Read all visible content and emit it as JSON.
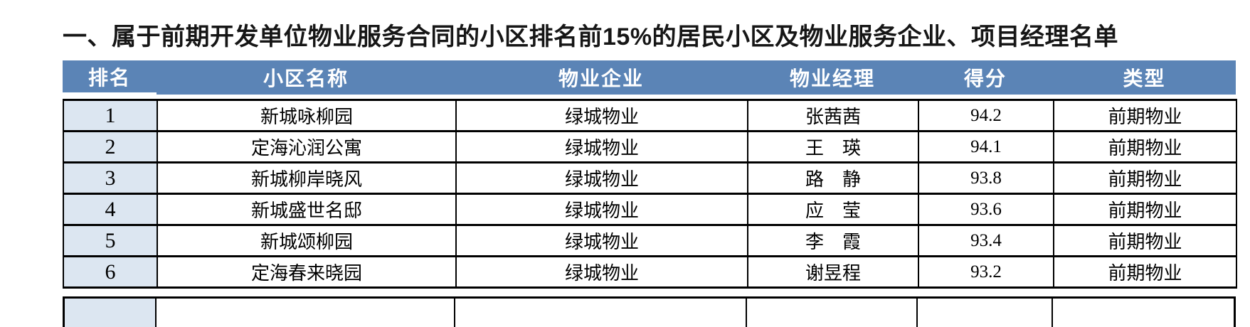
{
  "title": "一、属于前期开发单位物业服务合同的小区排名前15%的居民小区及物业服务企业、项目经理名单",
  "table": {
    "column_keys": [
      "rank",
      "community",
      "company",
      "manager",
      "score",
      "type"
    ],
    "headers": [
      "排名",
      "小区名称",
      "物业企业",
      "物业经理",
      "得分",
      "类型"
    ],
    "rows": [
      [
        "1",
        "新城咏柳园",
        "绿城物业",
        "张茜茜",
        "94.2",
        "前期物业"
      ],
      [
        "2",
        "定海沁润公寓",
        "绿城物业",
        "王　瑛",
        "94.1",
        "前期物业"
      ],
      [
        "3",
        "新城柳岸晓风",
        "绿城物业",
        "路　静",
        "93.8",
        "前期物业"
      ],
      [
        "4",
        "新城盛世名邸",
        "绿城物业",
        "应　莹",
        "93.6",
        "前期物业"
      ],
      [
        "5",
        "新城颂柳园",
        "绿城物业",
        "李　霞",
        "93.4",
        "前期物业"
      ],
      [
        "6",
        "定海春来晓园",
        "绿城物业",
        "谢昱程",
        "93.2",
        "前期物业"
      ]
    ]
  },
  "colors": {
    "header_bg": "#5b84b6",
    "header_text": "#ffffff",
    "rank_cell_bg": "#dce6f1",
    "border": "#000000",
    "page_bg": "#ffffff"
  }
}
